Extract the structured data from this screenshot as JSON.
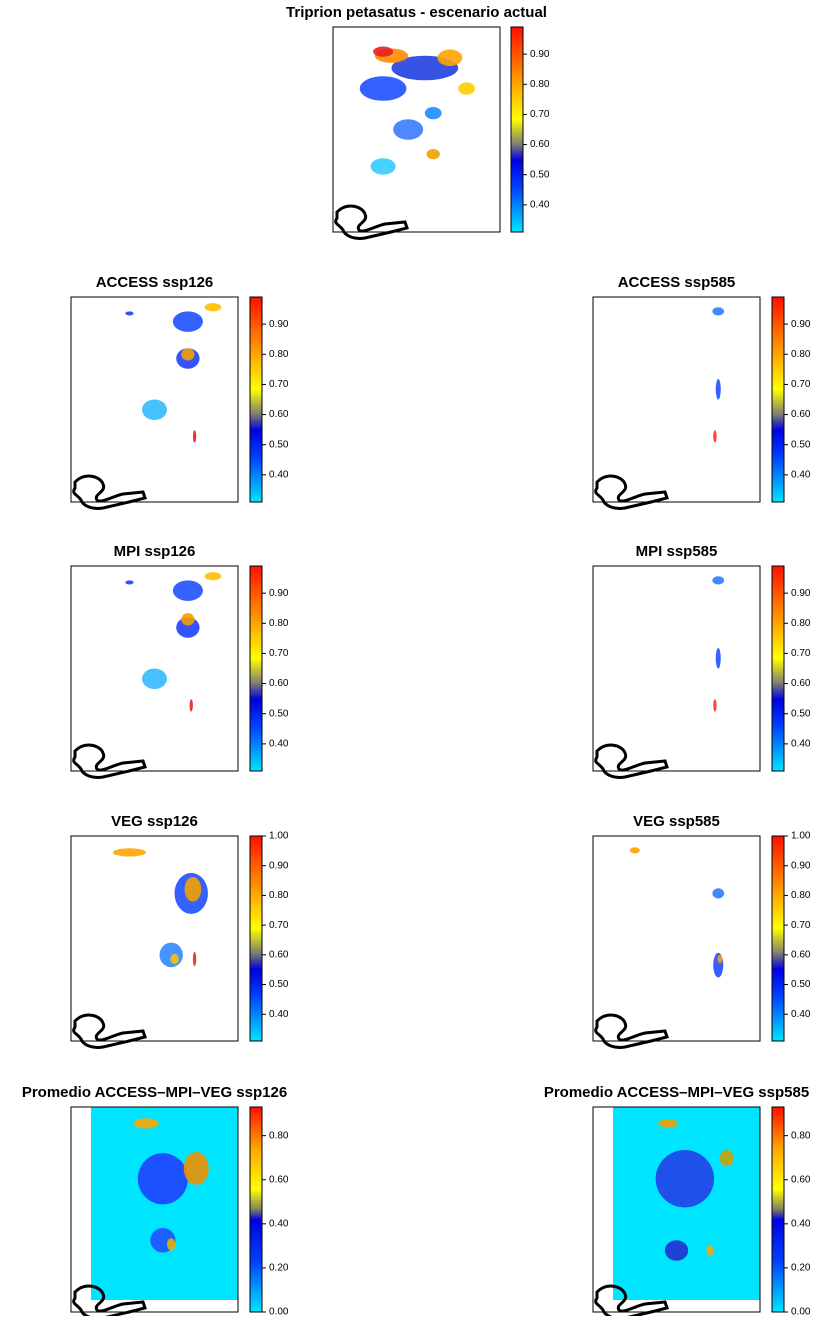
{
  "panels": [
    {
      "title": "Triprion petasatus - escenario actual",
      "colorbar": {
        "lim": [
          0.31,
          0.99
        ],
        "ticks": [
          {
            "value": 0.4,
            "label": "0.40"
          },
          {
            "value": 0.5,
            "label": "0.50"
          },
          {
            "value": 0.6,
            "label": "0.60"
          },
          {
            "value": 0.7,
            "label": "0.70"
          },
          {
            "value": 0.8,
            "label": "0.80"
          },
          {
            "value": 0.9,
            "label": "0.90"
          }
        ]
      }
    },
    {
      "title": "ACCESS ssp126",
      "colorbar": {
        "lim": [
          0.31,
          0.99
        ],
        "ticks": [
          {
            "value": 0.4,
            "label": "0.40"
          },
          {
            "value": 0.5,
            "label": "0.50"
          },
          {
            "value": 0.6,
            "label": "0.60"
          },
          {
            "value": 0.7,
            "label": "0.70"
          },
          {
            "value": 0.8,
            "label": "0.80"
          },
          {
            "value": 0.9,
            "label": "0.90"
          }
        ]
      }
    },
    {
      "title": "ACCESS ssp585",
      "colorbar": {
        "lim": [
          0.31,
          0.99
        ],
        "ticks": [
          {
            "value": 0.4,
            "label": "0.40"
          },
          {
            "value": 0.5,
            "label": "0.50"
          },
          {
            "value": 0.6,
            "label": "0.60"
          },
          {
            "value": 0.7,
            "label": "0.70"
          },
          {
            "value": 0.8,
            "label": "0.80"
          },
          {
            "value": 0.9,
            "label": "0.90"
          }
        ]
      }
    },
    {
      "title": "MPI ssp126",
      "colorbar": {
        "lim": [
          0.31,
          0.99
        ],
        "ticks": [
          {
            "value": 0.4,
            "label": "0.40"
          },
          {
            "value": 0.5,
            "label": "0.50"
          },
          {
            "value": 0.6,
            "label": "0.60"
          },
          {
            "value": 0.7,
            "label": "0.70"
          },
          {
            "value": 0.8,
            "label": "0.80"
          },
          {
            "value": 0.9,
            "label": "0.90"
          }
        ]
      }
    },
    {
      "title": "MPI ssp585",
      "colorbar": {
        "lim": [
          0.31,
          0.99
        ],
        "ticks": [
          {
            "value": 0.4,
            "label": "0.40"
          },
          {
            "value": 0.5,
            "label": "0.50"
          },
          {
            "value": 0.6,
            "label": "0.60"
          },
          {
            "value": 0.7,
            "label": "0.70"
          },
          {
            "value": 0.8,
            "label": "0.80"
          },
          {
            "value": 0.9,
            "label": "0.90"
          }
        ]
      }
    },
    {
      "title": "VEG ssp126",
      "colorbar": {
        "lim": [
          0.31,
          1.0
        ],
        "ticks": [
          {
            "value": 0.4,
            "label": "0.40"
          },
          {
            "value": 0.5,
            "label": "0.50"
          },
          {
            "value": 0.6,
            "label": "0.60"
          },
          {
            "value": 0.7,
            "label": "0.70"
          },
          {
            "value": 0.8,
            "label": "0.80"
          },
          {
            "value": 0.9,
            "label": "0.90"
          },
          {
            "value": 1.0,
            "label": "1.00"
          }
        ]
      }
    },
    {
      "title": "VEG ssp585",
      "colorbar": {
        "lim": [
          0.31,
          1.0
        ],
        "ticks": [
          {
            "value": 0.4,
            "label": "0.40"
          },
          {
            "value": 0.5,
            "label": "0.50"
          },
          {
            "value": 0.6,
            "label": "0.60"
          },
          {
            "value": 0.7,
            "label": "0.70"
          },
          {
            "value": 0.8,
            "label": "0.80"
          },
          {
            "value": 0.9,
            "label": "0.90"
          },
          {
            "value": 1.0,
            "label": "1.00"
          }
        ]
      }
    },
    {
      "title": "Promedio ACCESS–MPI–VEG ssp126",
      "colorbar": {
        "lim": [
          0,
          0.93
        ],
        "ticks": [
          {
            "value": 0,
            "label": "0.00"
          },
          {
            "value": 0.2,
            "label": "0.20"
          },
          {
            "value": 0.4,
            "label": "0.40"
          },
          {
            "value": 0.6,
            "label": "0.60"
          },
          {
            "value": 0.8,
            "label": "0.80"
          }
        ]
      }
    },
    {
      "title": "Promedio ACCESS–MPI–VEG ssp585",
      "colorbar": {
        "lim": [
          0,
          0.93
        ],
        "ticks": [
          {
            "value": 0,
            "label": "0.00"
          },
          {
            "value": 0.2,
            "label": "0.20"
          },
          {
            "value": 0.4,
            "label": "0.40"
          },
          {
            "value": 0.6,
            "label": "0.60"
          },
          {
            "value": 0.8,
            "label": "0.80"
          }
        ]
      }
    }
  ]
}
